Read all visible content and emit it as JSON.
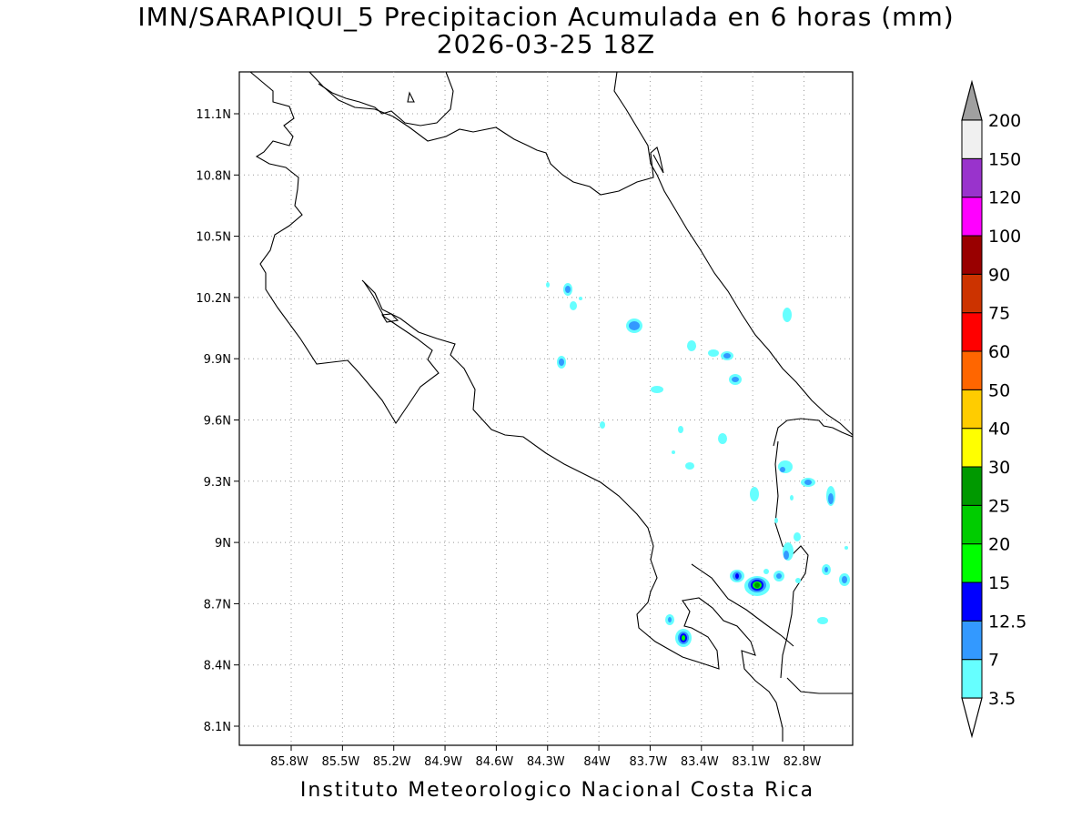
{
  "title_line1": "IMN/SARAPIQUI_5 Precipitacion Acumulada en 6 horas (mm)",
  "title_line2": "2026-03-25 18Z",
  "footer": "Instituto Meteorologico Nacional Costa Rica",
  "map": {
    "lon_range": [
      -86.0,
      -82.6
    ],
    "lat_range": [
      8.0,
      11.3
    ],
    "lon_ticks": [
      "85.8W",
      "85.5W",
      "85.2W",
      "84.9W",
      "84.6W",
      "84.3W",
      "84W",
      "83.7W",
      "83.4W",
      "83.1W",
      "82.8W"
    ],
    "lat_ticks": [
      "8.1N",
      "8.4N",
      "8.7N",
      "9N",
      "9.3N",
      "9.6N",
      "9.9N",
      "10.2N",
      "10.5N",
      "10.8N",
      "11.1N"
    ],
    "grid": true,
    "grid_style": "dotted"
  },
  "colorbar": {
    "labels": [
      "3.5",
      "7",
      "12.5",
      "15",
      "20",
      "25",
      "30",
      "40",
      "50",
      "60",
      "75",
      "90",
      "100",
      "120",
      "150",
      "200"
    ],
    "colors": [
      "#66ffff",
      "#3399ff",
      "#0000ff",
      "#00ff00",
      "#00cc00",
      "#009900",
      "#ffff00",
      "#ffcc00",
      "#ff6600",
      "#ff0000",
      "#cc3300",
      "#990000",
      "#ff00ff",
      "#9933cc",
      "#f0f0f0"
    ],
    "top_arrow_color": "#a0a0a0",
    "bottom_arrow_color": "#ffffff"
  }
}
